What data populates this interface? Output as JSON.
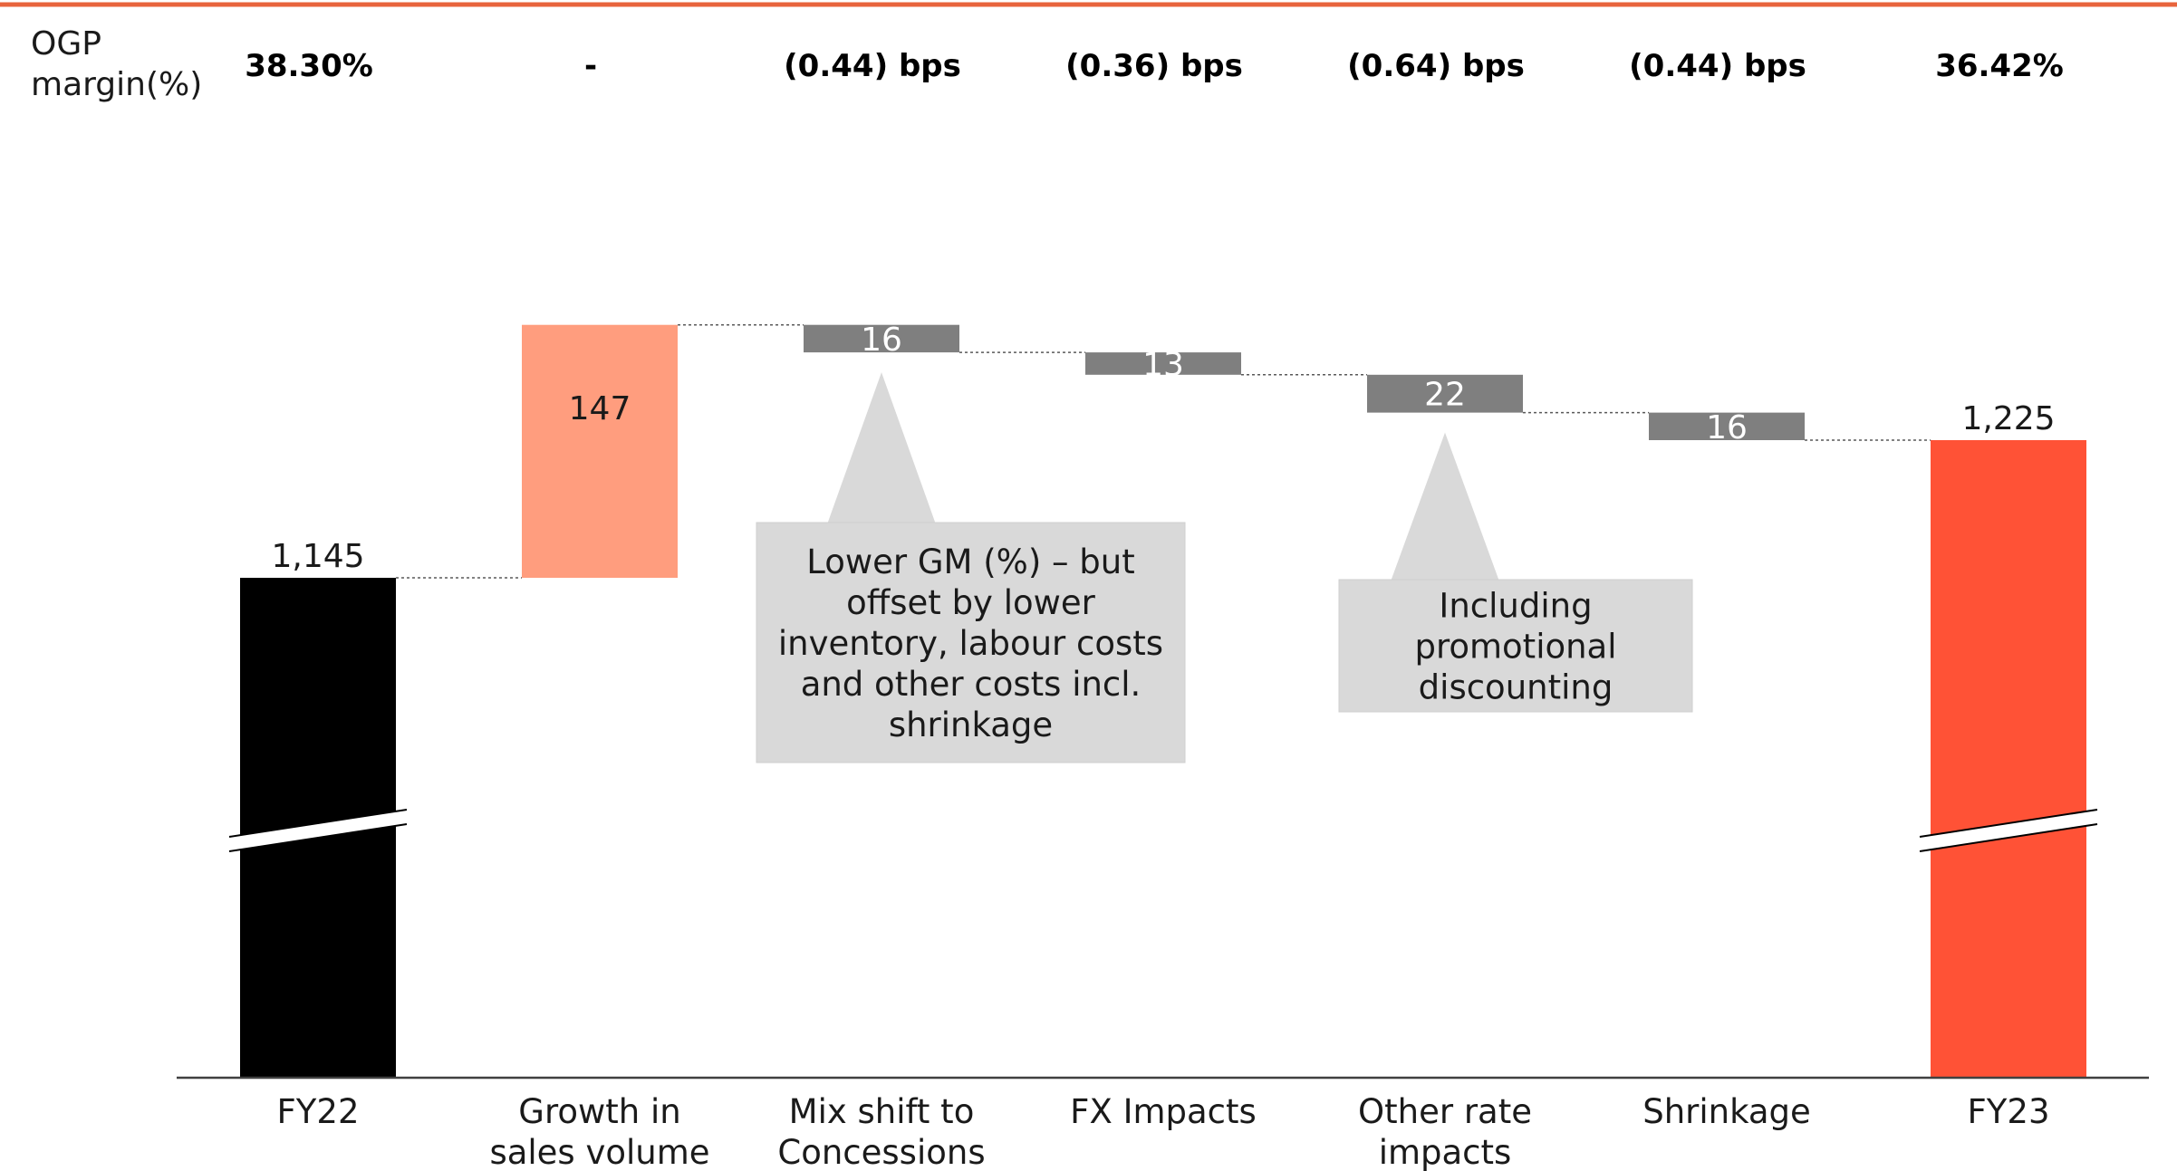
{
  "ogp_margin": {
    "label_lines": [
      "OGP",
      "margin(%)"
    ],
    "values": [
      "38.30%",
      "-",
      "(0.44) bps",
      "(0.36) bps",
      "(0.64) bps",
      "(0.44) bps",
      "36.42%"
    ]
  },
  "chart_data": {
    "type": "waterfall",
    "categories": [
      [
        "FY22"
      ],
      [
        "Growth in",
        "sales volume"
      ],
      [
        "Mix shift to",
        "Concessions"
      ],
      [
        "FX Impacts"
      ],
      [
        "Other rate",
        "impacts"
      ],
      [
        "Shrinkage"
      ],
      [
        "FY23"
      ]
    ],
    "steps": [
      {
        "kind": "total",
        "value": 1145,
        "label": "1,145"
      },
      {
        "kind": "increase",
        "value": 147,
        "label": "147"
      },
      {
        "kind": "decrease",
        "value": 16,
        "label": "16"
      },
      {
        "kind": "decrease",
        "value": 13,
        "label": "13"
      },
      {
        "kind": "decrease",
        "value": 22,
        "label": "22"
      },
      {
        "kind": "decrease",
        "value": 16,
        "label": "16"
      },
      {
        "kind": "total",
        "value": 1225,
        "label": "1,225"
      }
    ],
    "axis_break": true,
    "colors": {
      "start_total": "#000000",
      "increase": "#ff9d7e",
      "decrease": "#7f7f7f",
      "end_total": "#ff5236",
      "connector": "#595959",
      "accent_line": "#e8643c"
    }
  },
  "callouts": [
    {
      "target_step": 2,
      "lines": [
        "Lower GM (%) – but",
        "offset by lower",
        "inventory, labour costs",
        "and other costs incl.",
        "shrinkage"
      ]
    },
    {
      "target_step": 4,
      "lines": [
        "Including",
        "promotional",
        "discounting"
      ]
    }
  ]
}
